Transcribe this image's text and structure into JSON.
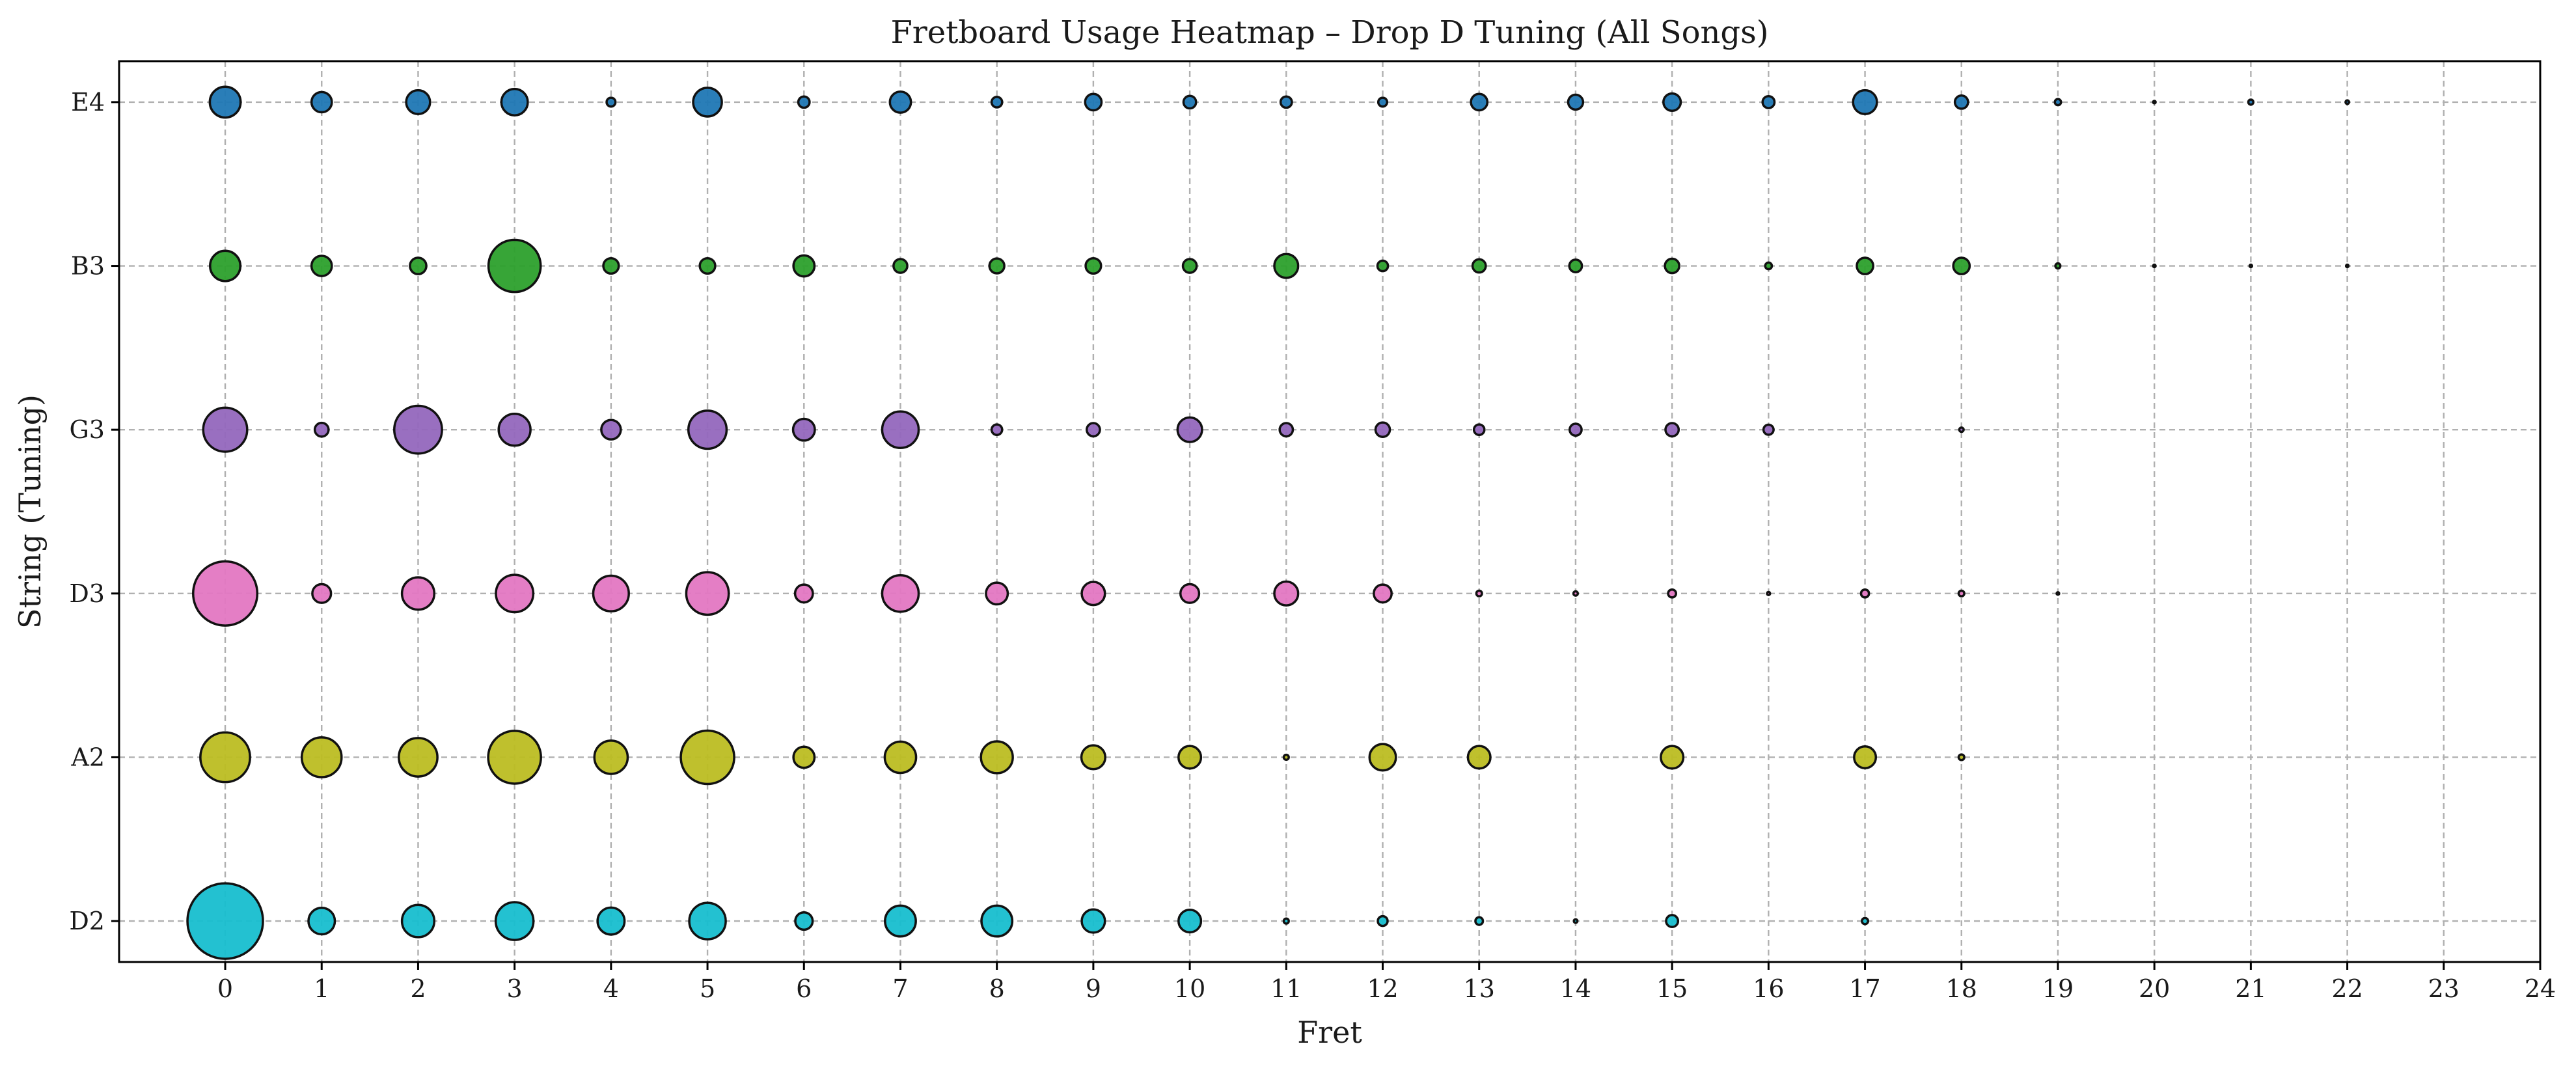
{
  "chart_data": {
    "type": "scatter",
    "title": "Fretboard Usage Heatmap – Drop D Tuning (All Songs)",
    "xlabel": "Fret",
    "ylabel": "String (Tuning)",
    "xlim": [
      -1.1,
      24
    ],
    "x_ticks": [
      0,
      1,
      2,
      3,
      4,
      5,
      6,
      7,
      8,
      9,
      10,
      11,
      12,
      13,
      14,
      15,
      16,
      17,
      18,
      19,
      20,
      21,
      22,
      23,
      24
    ],
    "strings": [
      "D2",
      "A2",
      "D3",
      "G3",
      "B3",
      "E4"
    ],
    "grid": true,
    "size_encoding": "marker area proportional to usage count",
    "series": [
      {
        "string": "D2",
        "color": "#17becf",
        "points": [
          {
            "fret": 0,
            "usage": 1800
          },
          {
            "fret": 1,
            "usage": 220
          },
          {
            "fret": 2,
            "usage": 330
          },
          {
            "fret": 3,
            "usage": 450
          },
          {
            "fret": 4,
            "usage": 230
          },
          {
            "fret": 5,
            "usage": 420
          },
          {
            "fret": 6,
            "usage": 95
          },
          {
            "fret": 7,
            "usage": 300
          },
          {
            "fret": 8,
            "usage": 300
          },
          {
            "fret": 9,
            "usage": 170
          },
          {
            "fret": 10,
            "usage": 160
          },
          {
            "fret": 11,
            "usage": 8
          },
          {
            "fret": 12,
            "usage": 30
          },
          {
            "fret": 13,
            "usage": 18
          },
          {
            "fret": 14,
            "usage": 4
          },
          {
            "fret": 15,
            "usage": 45
          },
          {
            "fret": 17,
            "usage": 12
          }
        ]
      },
      {
        "string": "A2",
        "color": "#bcbd22",
        "points": [
          {
            "fret": 0,
            "usage": 780
          },
          {
            "fret": 1,
            "usage": 500
          },
          {
            "fret": 2,
            "usage": 470
          },
          {
            "fret": 3,
            "usage": 880
          },
          {
            "fret": 4,
            "usage": 350
          },
          {
            "fret": 5,
            "usage": 900
          },
          {
            "fret": 6,
            "usage": 140
          },
          {
            "fret": 7,
            "usage": 310
          },
          {
            "fret": 8,
            "usage": 320
          },
          {
            "fret": 9,
            "usage": 180
          },
          {
            "fret": 10,
            "usage": 160
          },
          {
            "fret": 11,
            "usage": 8
          },
          {
            "fret": 12,
            "usage": 220
          },
          {
            "fret": 13,
            "usage": 160
          },
          {
            "fret": 15,
            "usage": 160
          },
          {
            "fret": 17,
            "usage": 150
          },
          {
            "fret": 18,
            "usage": 10
          }
        ]
      },
      {
        "string": "D3",
        "color": "#e377c2",
        "points": [
          {
            "fret": 0,
            "usage": 1300
          },
          {
            "fret": 1,
            "usage": 110
          },
          {
            "fret": 2,
            "usage": 330
          },
          {
            "fret": 3,
            "usage": 440
          },
          {
            "fret": 4,
            "usage": 400
          },
          {
            "fret": 5,
            "usage": 570
          },
          {
            "fret": 6,
            "usage": 100
          },
          {
            "fret": 7,
            "usage": 420
          },
          {
            "fret": 8,
            "usage": 150
          },
          {
            "fret": 9,
            "usage": 170
          },
          {
            "fret": 10,
            "usage": 110
          },
          {
            "fret": 11,
            "usage": 180
          },
          {
            "fret": 12,
            "usage": 100
          },
          {
            "fret": 13,
            "usage": 10
          },
          {
            "fret": 14,
            "usage": 6
          },
          {
            "fret": 15,
            "usage": 20
          },
          {
            "fret": 16,
            "usage": 3
          },
          {
            "fret": 17,
            "usage": 20
          },
          {
            "fret": 18,
            "usage": 10
          },
          {
            "fret": 19,
            "usage": 2
          }
        ]
      },
      {
        "string": "G3",
        "color": "#9467bd",
        "points": [
          {
            "fret": 0,
            "usage": 610
          },
          {
            "fret": 1,
            "usage": 60
          },
          {
            "fret": 2,
            "usage": 720
          },
          {
            "fret": 3,
            "usage": 320
          },
          {
            "fret": 4,
            "usage": 120
          },
          {
            "fret": 5,
            "usage": 460
          },
          {
            "fret": 6,
            "usage": 150
          },
          {
            "fret": 7,
            "usage": 420
          },
          {
            "fret": 8,
            "usage": 35
          },
          {
            "fret": 9,
            "usage": 55
          },
          {
            "fret": 10,
            "usage": 190
          },
          {
            "fret": 11,
            "usage": 55
          },
          {
            "fret": 12,
            "usage": 65
          },
          {
            "fret": 13,
            "usage": 35
          },
          {
            "fret": 14,
            "usage": 45
          },
          {
            "fret": 15,
            "usage": 55
          },
          {
            "fret": 16,
            "usage": 32
          },
          {
            "fret": 18,
            "usage": 6
          }
        ]
      },
      {
        "string": "B3",
        "color": "#2ca02c",
        "points": [
          {
            "fret": 0,
            "usage": 290
          },
          {
            "fret": 1,
            "usage": 130
          },
          {
            "fret": 2,
            "usage": 85
          },
          {
            "fret": 3,
            "usage": 860
          },
          {
            "fret": 4,
            "usage": 75
          },
          {
            "fret": 5,
            "usage": 75
          },
          {
            "fret": 6,
            "usage": 140
          },
          {
            "fret": 7,
            "usage": 60
          },
          {
            "fret": 8,
            "usage": 70
          },
          {
            "fret": 9,
            "usage": 75
          },
          {
            "fret": 10,
            "usage": 60
          },
          {
            "fret": 11,
            "usage": 180
          },
          {
            "fret": 12,
            "usage": 35
          },
          {
            "fret": 13,
            "usage": 55
          },
          {
            "fret": 14,
            "usage": 50
          },
          {
            "fret": 15,
            "usage": 65
          },
          {
            "fret": 16,
            "usage": 14
          },
          {
            "fret": 17,
            "usage": 85
          },
          {
            "fret": 18,
            "usage": 85
          },
          {
            "fret": 19,
            "usage": 8
          },
          {
            "fret": 20,
            "usage": 2
          },
          {
            "fret": 21,
            "usage": 2
          },
          {
            "fret": 22,
            "usage": 2
          }
        ]
      },
      {
        "string": "E4",
        "color": "#1f77b4",
        "points": [
          {
            "fret": 0,
            "usage": 300
          },
          {
            "fret": 1,
            "usage": 130
          },
          {
            "fret": 2,
            "usage": 180
          },
          {
            "fret": 3,
            "usage": 220
          },
          {
            "fret": 4,
            "usage": 25
          },
          {
            "fret": 5,
            "usage": 260
          },
          {
            "fret": 6,
            "usage": 40
          },
          {
            "fret": 7,
            "usage": 140
          },
          {
            "fret": 8,
            "usage": 35
          },
          {
            "fret": 9,
            "usage": 85
          },
          {
            "fret": 10,
            "usage": 50
          },
          {
            "fret": 11,
            "usage": 40
          },
          {
            "fret": 12,
            "usage": 25
          },
          {
            "fret": 13,
            "usage": 85
          },
          {
            "fret": 14,
            "usage": 70
          },
          {
            "fret": 15,
            "usage": 95
          },
          {
            "fret": 16,
            "usage": 45
          },
          {
            "fret": 17,
            "usage": 180
          },
          {
            "fret": 18,
            "usage": 55
          },
          {
            "fret": 19,
            "usage": 12
          },
          {
            "fret": 20,
            "usage": 2
          },
          {
            "fret": 21,
            "usage": 8
          },
          {
            "fret": 22,
            "usage": 4
          }
        ]
      }
    ]
  }
}
